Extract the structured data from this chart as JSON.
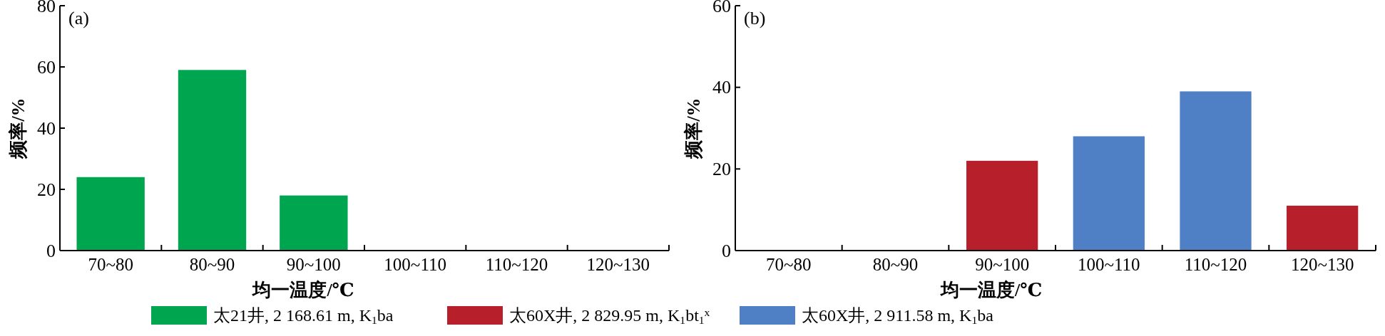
{
  "chart_data": [
    {
      "type": "bar",
      "annotations": [
        "(a)"
      ],
      "xlabel": "均一温度/℃",
      "ylabel": "频率/%",
      "categories": [
        "70~80",
        "80~90",
        "90~100",
        "100~110",
        "110~120",
        "120~130"
      ],
      "ylim": [
        0,
        80
      ],
      "yticks": [
        0,
        20,
        40,
        60,
        80
      ],
      "grid": false,
      "legend": "bottom",
      "series": [
        {
          "name": "太21井, 2 168.61 m, K$_{1}$ba",
          "color": "#00a550",
          "values": [
            24,
            59,
            18,
            null,
            null,
            null
          ]
        }
      ]
    },
    {
      "type": "bar",
      "annotations": [
        "(b)"
      ],
      "xlabel": "均一温度/℃",
      "ylabel": "频率/%",
      "categories": [
        "70~80",
        "80~90",
        "90~100",
        "100~110",
        "110~120",
        "120~130"
      ],
      "ylim": [
        0,
        60
      ],
      "yticks": [
        0,
        20,
        40,
        60
      ],
      "grid": false,
      "legend": "bottom",
      "series": [
        {
          "name": "太60X井, 2 829.95 m, K$_{1}$bt$_{1}$$^{x}$",
          "color": "#b7202a",
          "values": [
            null,
            null,
            22,
            null,
            null,
            11
          ]
        },
        {
          "name": "太60X井, 2 911.58 m, K$_{1}$ba",
          "color": "#4f7fc4",
          "values": [
            null,
            null,
            null,
            28,
            39,
            null
          ]
        }
      ]
    }
  ]
}
